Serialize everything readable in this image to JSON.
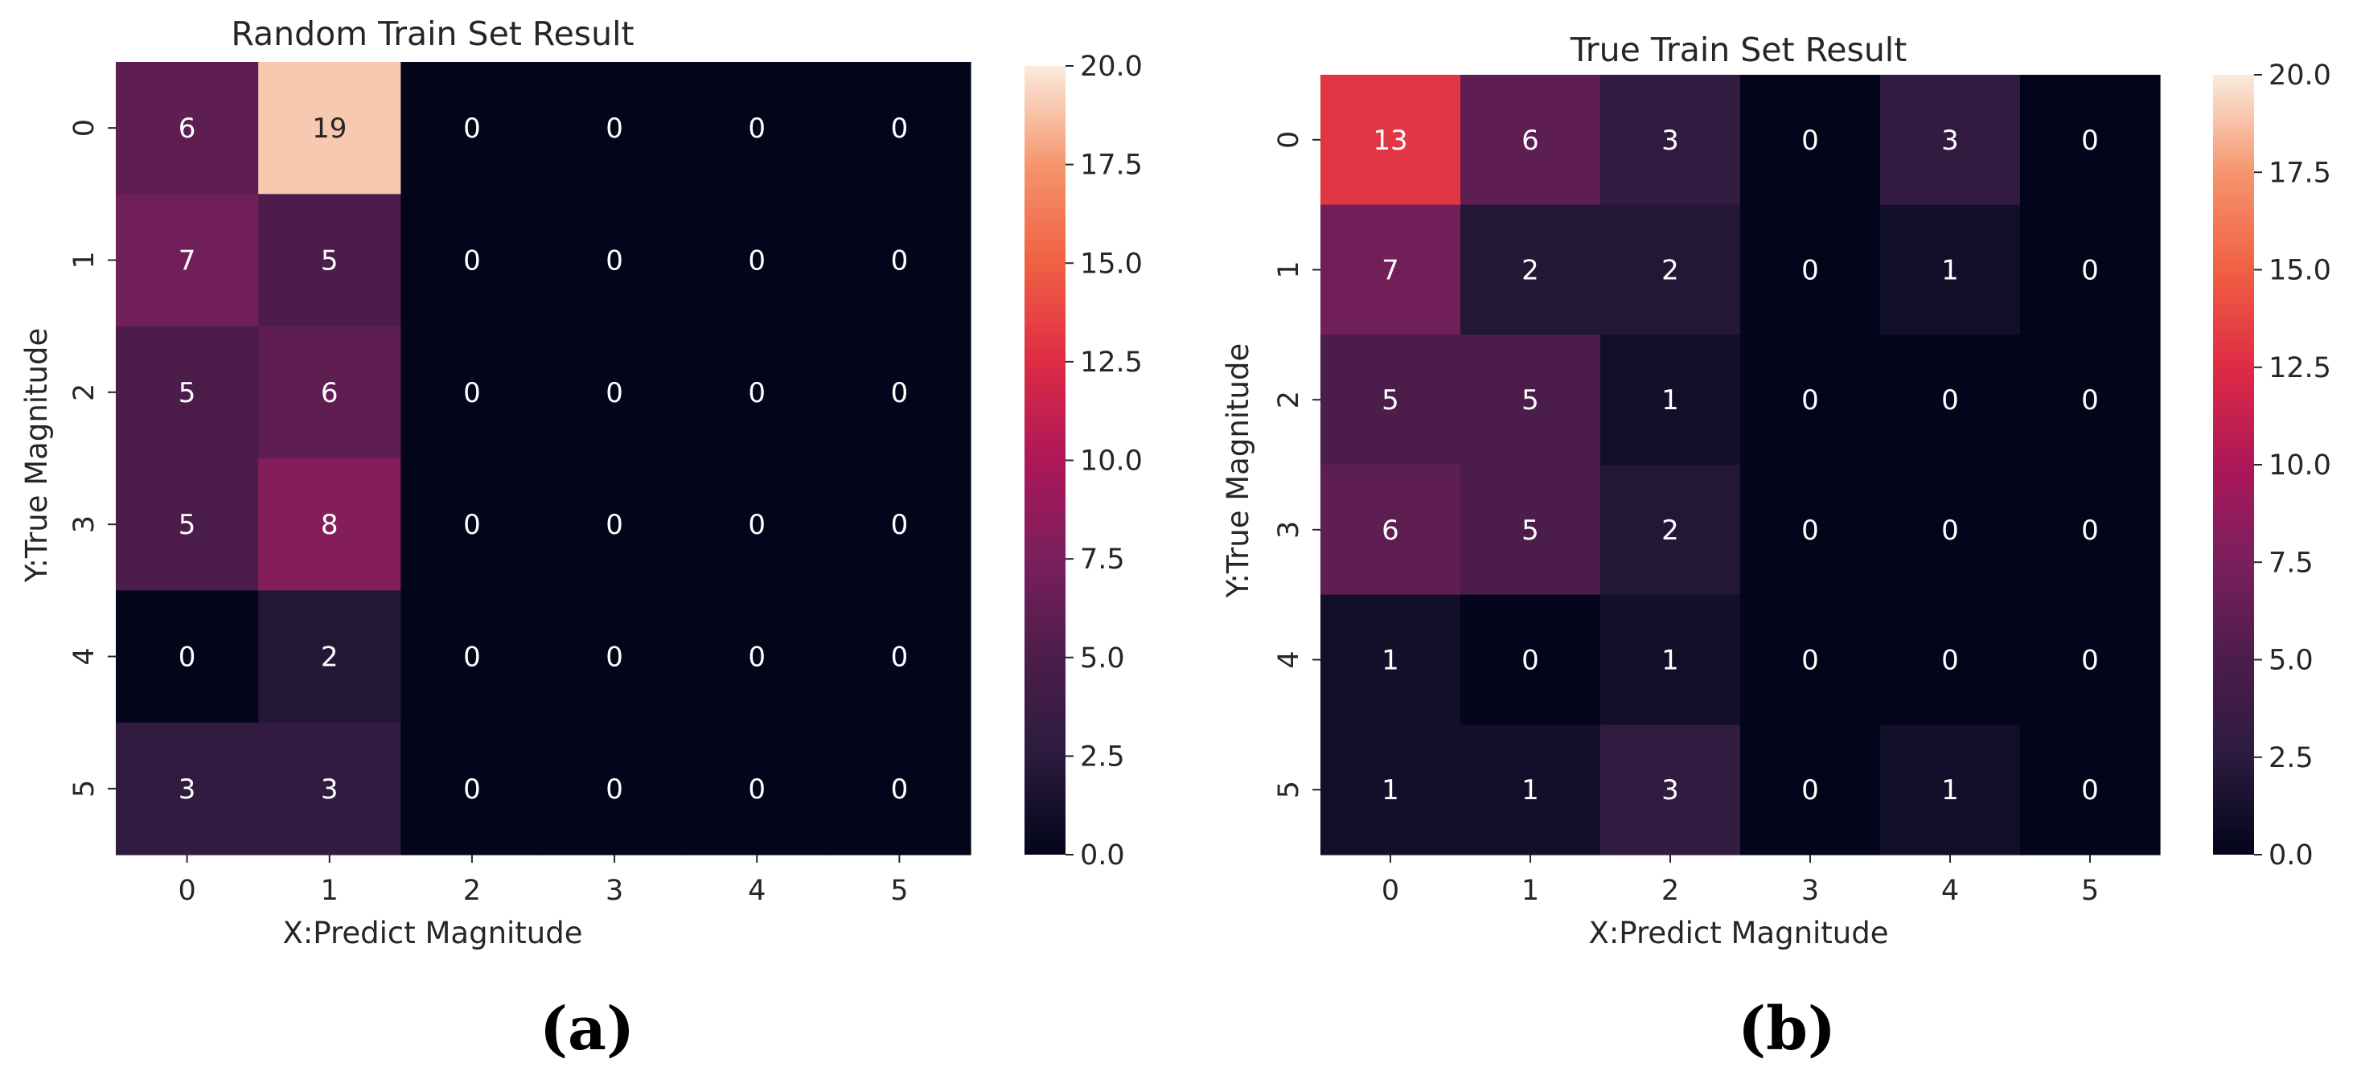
{
  "chart_data": [
    {
      "type": "heatmap",
      "title": "Random Train Set Result",
      "xlabel": "X:Predict Magnitude",
      "ylabel": "Y:True Magnitude",
      "x_categories": [
        "0",
        "1",
        "2",
        "3",
        "4",
        "5"
      ],
      "y_categories": [
        "0",
        "1",
        "2",
        "3",
        "4",
        "5"
      ],
      "values": [
        [
          6,
          19,
          0,
          0,
          0,
          0
        ],
        [
          7,
          5,
          0,
          0,
          0,
          0
        ],
        [
          5,
          6,
          0,
          0,
          0,
          0
        ],
        [
          5,
          8,
          0,
          0,
          0,
          0
        ],
        [
          0,
          2,
          0,
          0,
          0,
          0
        ],
        [
          3,
          3,
          0,
          0,
          0,
          0
        ]
      ],
      "vmin": 0,
      "vmax": 20,
      "colormap": "rocket",
      "colorbar_ticks": [
        "0.0",
        "2.5",
        "5.0",
        "7.5",
        "10.0",
        "12.5",
        "15.0",
        "17.5",
        "20.0"
      ],
      "caption": "(a)"
    },
    {
      "type": "heatmap",
      "title": "True Train Set Result",
      "xlabel": "X:Predict Magnitude",
      "ylabel": "Y:True Magnitude",
      "x_categories": [
        "0",
        "1",
        "2",
        "3",
        "4",
        "5"
      ],
      "y_categories": [
        "0",
        "1",
        "2",
        "3",
        "4",
        "5"
      ],
      "values": [
        [
          13,
          6,
          3,
          0,
          3,
          0
        ],
        [
          7,
          2,
          2,
          0,
          1,
          0
        ],
        [
          5,
          5,
          1,
          0,
          0,
          0
        ],
        [
          6,
          5,
          2,
          0,
          0,
          0
        ],
        [
          1,
          0,
          1,
          0,
          0,
          0
        ],
        [
          1,
          1,
          3,
          0,
          1,
          0
        ]
      ],
      "vmin": 0,
      "vmax": 20,
      "colormap": "rocket",
      "colorbar_ticks": [
        "0.0",
        "2.5",
        "5.0",
        "7.5",
        "10.0",
        "12.5",
        "15.0",
        "17.5",
        "20.0"
      ],
      "caption": "(b)"
    }
  ]
}
